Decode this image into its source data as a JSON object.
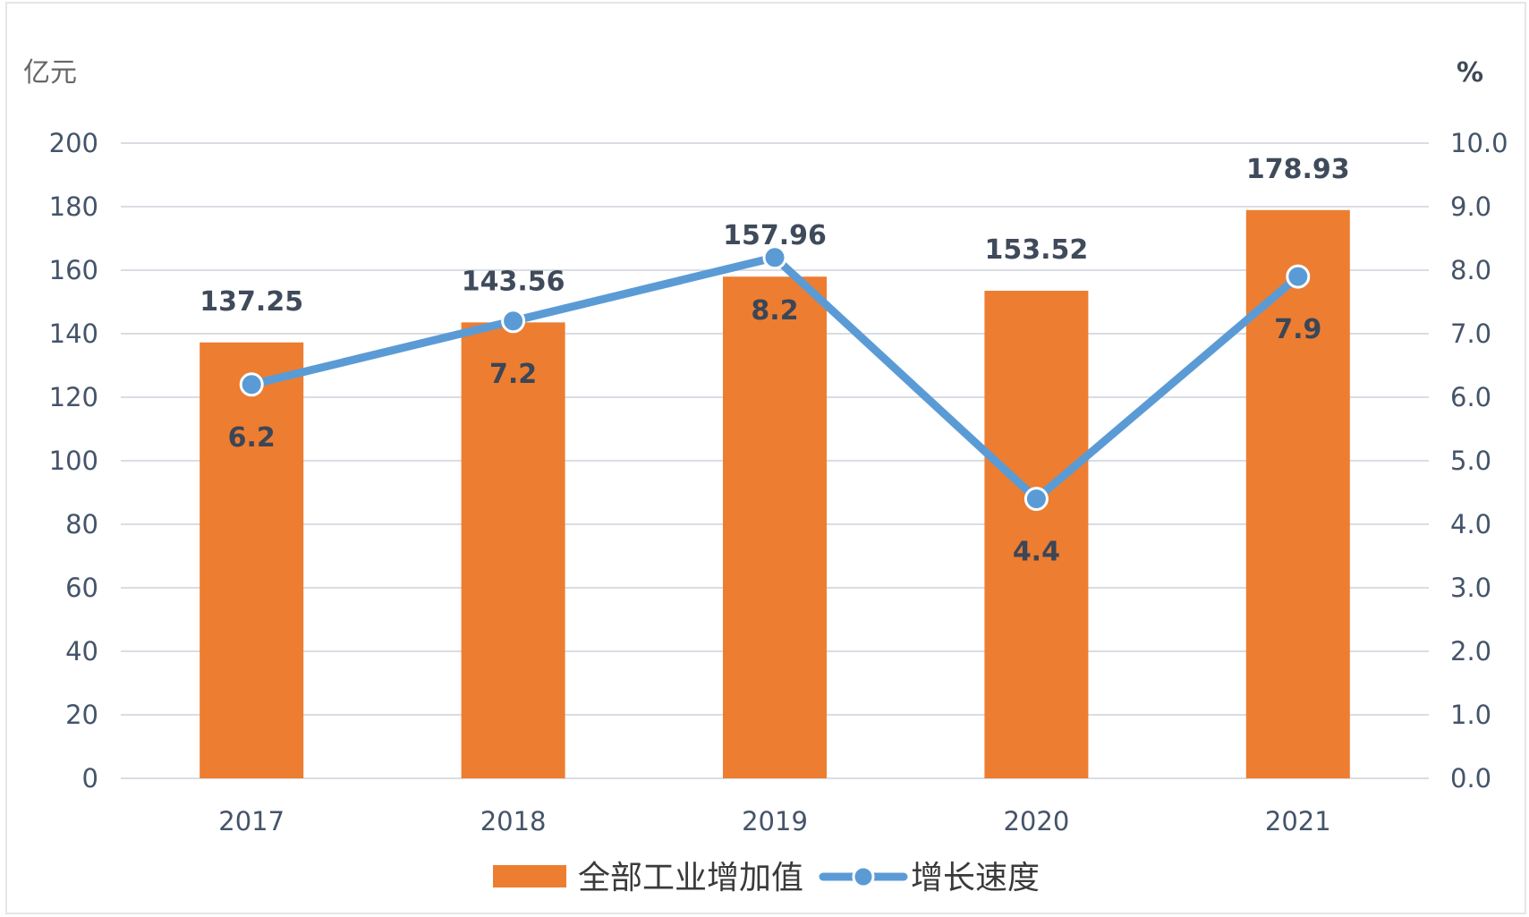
{
  "chart_data": {
    "type": "bar",
    "categories": [
      "2017",
      "2018",
      "2019",
      "2020",
      "2021"
    ],
    "series": [
      {
        "name": "全部工业增加值",
        "type": "bar",
        "axis": "left",
        "values": [
          137.25,
          143.56,
          157.96,
          153.52,
          178.93
        ],
        "color": "#ed7d31"
      },
      {
        "name": "增长速度",
        "type": "line",
        "axis": "right",
        "values": [
          6.2,
          7.2,
          8.2,
          4.4,
          7.9
        ],
        "color": "#5b9bd5"
      }
    ],
    "y_left": {
      "unit": "亿元",
      "ylim": [
        0,
        200
      ],
      "ticks": [
        "0",
        "20",
        "40",
        "60",
        "80",
        "100",
        "120",
        "140",
        "160",
        "180",
        "200"
      ]
    },
    "y_right": {
      "unit": "%",
      "ylim": [
        0,
        10
      ],
      "ticks": [
        "0.0",
        "1.0",
        "2.0",
        "3.0",
        "4.0",
        "5.0",
        "6.0",
        "7.0",
        "8.0",
        "9.0",
        "10.0"
      ]
    },
    "bar_labels": [
      "137.25",
      "143.56",
      "157.96",
      "153.52",
      "178.93"
    ],
    "line_labels": [
      "6.2",
      "7.2",
      "8.2",
      "4.4",
      "7.9"
    ],
    "grid": true,
    "legend_position": "bottom",
    "gridline_color": "#d9dde3",
    "tick_color": "#44546a"
  }
}
